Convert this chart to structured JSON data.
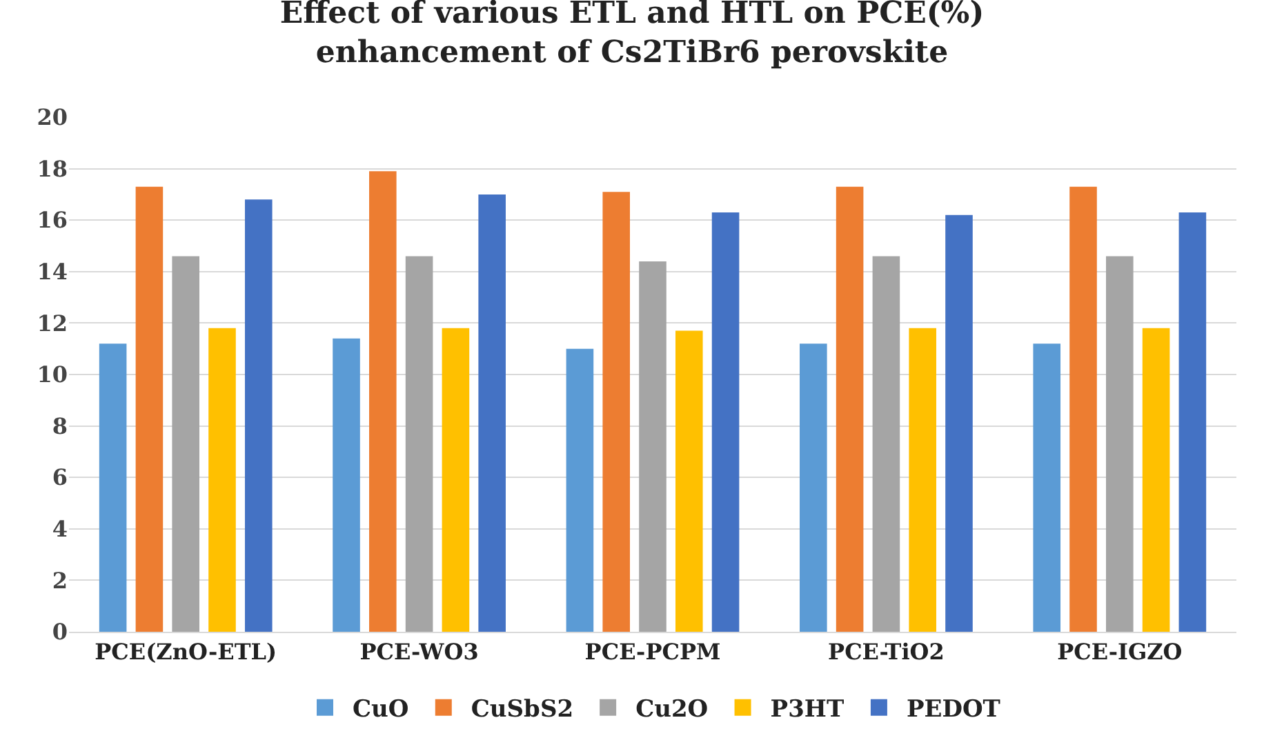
{
  "chart_data": {
    "type": "bar",
    "title": "Effect of various ETL and HTL on PCE(%)\nenhancement of Cs2TiBr6 perovskite",
    "categories": [
      "PCE(ZnO-ETL)",
      "PCE-WO3",
      "PCE-PCPM",
      "PCE-TiO2",
      "PCE-IGZO"
    ],
    "series": [
      {
        "name": "CuO",
        "color": "#5b9bd5",
        "values": [
          11.2,
          11.4,
          11.0,
          11.2,
          11.2
        ]
      },
      {
        "name": "CuSbS2",
        "color": "#ed7d31",
        "values": [
          17.3,
          17.9,
          17.1,
          17.3,
          17.3
        ]
      },
      {
        "name": "Cu2O",
        "color": "#a5a5a5",
        "values": [
          14.6,
          14.6,
          14.4,
          14.6,
          14.6
        ]
      },
      {
        "name": "P3HT",
        "color": "#ffc000",
        "values": [
          11.8,
          11.8,
          11.7,
          11.8,
          11.8
        ]
      },
      {
        "name": "PEDOT",
        "color": "#4472c4",
        "values": [
          16.8,
          17.0,
          16.3,
          16.2,
          16.3
        ]
      }
    ],
    "ylim": [
      0,
      20
    ],
    "yticks": [
      0,
      2,
      4,
      6,
      8,
      10,
      12,
      14,
      16,
      18,
      20
    ],
    "grid": "y",
    "legend": "bottom"
  }
}
